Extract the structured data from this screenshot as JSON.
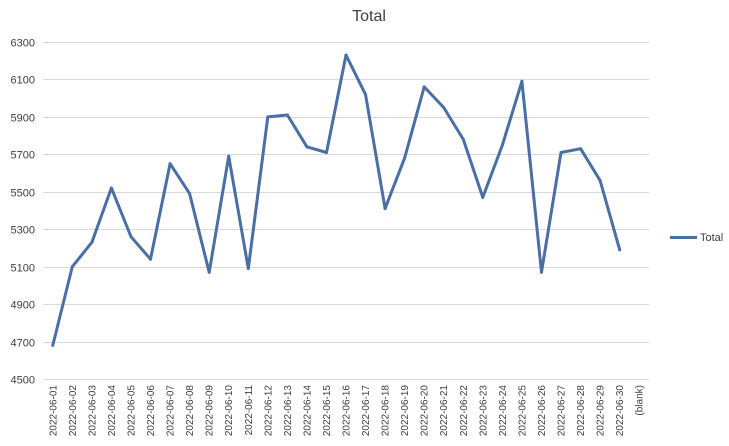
{
  "chart_data": {
    "type": "line",
    "title": "Total",
    "xlabel": "",
    "ylabel": "",
    "ylim": [
      4500,
      6300
    ],
    "y_ticks": [
      4500,
      4700,
      4900,
      5100,
      5300,
      5500,
      5700,
      5900,
      6100,
      6300
    ],
    "grid": "horizontal",
    "legend_position": "right",
    "categories": [
      "2022-06-01",
      "2022-06-02",
      "2022-06-03",
      "2022-06-04",
      "2022-06-05",
      "2022-06-06",
      "2022-06-07",
      "2022-06-08",
      "2022-06-09",
      "2022-06-10",
      "2022-06-11",
      "2022-06-12",
      "2022-06-13",
      "2022-06-14",
      "2022-06-15",
      "2022-06-16",
      "2022-06-17",
      "2022-06-18",
      "2022-06-19",
      "2022-06-20",
      "2022-06-21",
      "2022-06-22",
      "2022-06-23",
      "2022-06-24",
      "2022-06-25",
      "2022-06-26",
      "2022-06-27",
      "2022-06-28",
      "2022-06-29",
      "2022-06-30",
      "(blank)"
    ],
    "series": [
      {
        "name": "Total",
        "color": "#4a6fa5",
        "values": [
          4680,
          5100,
          5230,
          5520,
          5260,
          5140,
          5650,
          5490,
          5070,
          5690,
          5090,
          5900,
          5910,
          5740,
          5710,
          6230,
          6020,
          5410,
          5680,
          6060,
          5950,
          5780,
          5470,
          5750,
          6090,
          5070,
          5710,
          5730,
          5560,
          5190,
          null
        ]
      }
    ]
  }
}
